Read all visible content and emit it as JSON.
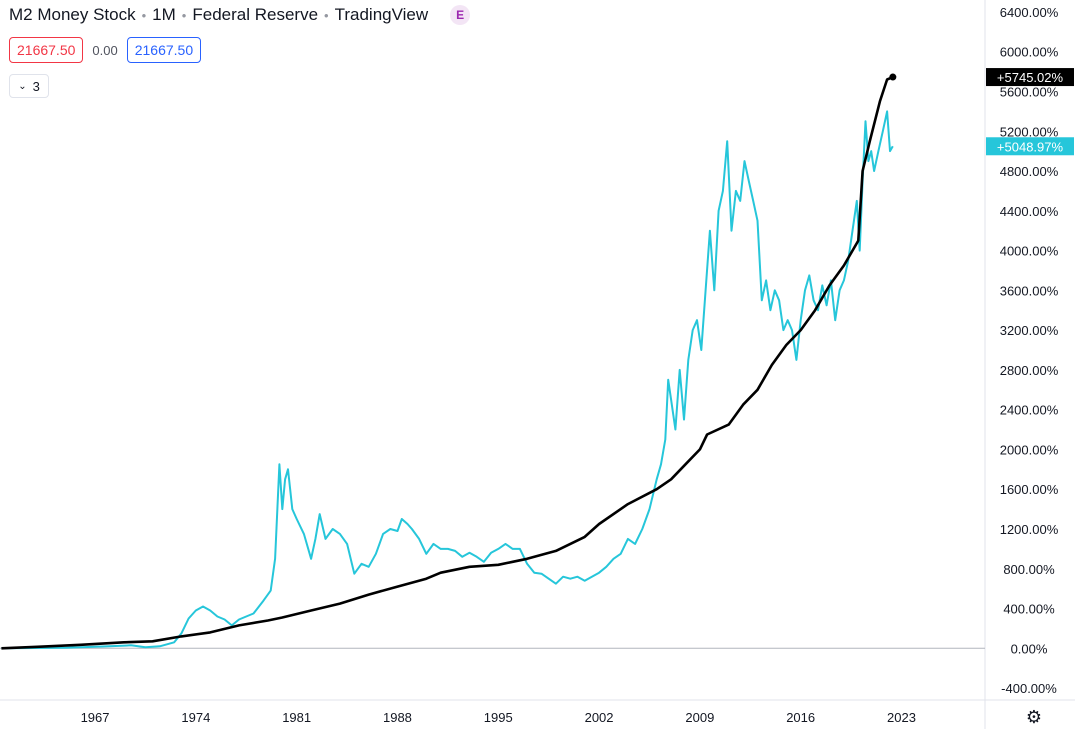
{
  "header": {
    "symbol": "M2 Money Stock",
    "interval": "1M",
    "source": "Federal Reserve",
    "platform": "TradingView",
    "badge": "E"
  },
  "values_row": {
    "left_value": "21667.50",
    "change": "0.00",
    "right_value": "21667.50"
  },
  "collapse": {
    "count": "3"
  },
  "icons": {
    "settings": "gear-icon",
    "collapse": "chevron-down-icon"
  },
  "colors": {
    "cyan_series": "#26c6da",
    "black_series": "#000000",
    "grid_zero": "#b2b5be"
  },
  "chart_data": {
    "type": "line",
    "y_axis": {
      "unit": "%",
      "range": [
        -520,
        6520
      ],
      "tick_labels": [
        "6400.00%",
        "6000.00%",
        "5600.00%",
        "5200.00%",
        "4800.00%",
        "4400.00%",
        "4000.00%",
        "3600.00%",
        "3200.00%",
        "2800.00%",
        "2400.00%",
        "2000.00%",
        "1600.00%",
        "1200.00%",
        "800.00%",
        "400.00%",
        "0.00%",
        "-400.00%"
      ],
      "tick_values": [
        6400,
        6000,
        5600,
        5200,
        4800,
        4400,
        4000,
        3600,
        3200,
        2800,
        2400,
        2000,
        1600,
        1200,
        800,
        400,
        0,
        -400
      ]
    },
    "x_axis": {
      "range": [
        1960.4,
        2028.8
      ],
      "tick_labels": [
        "1967",
        "1974",
        "1981",
        "1988",
        "1995",
        "2002",
        "2009",
        "2016",
        "2023"
      ],
      "tick_values": [
        1967,
        1974,
        1981,
        1988,
        1995,
        2002,
        2009,
        2016,
        2023
      ]
    },
    "last_value_labels": {
      "black": "+5745.02%",
      "cyan": "+5048.97%"
    },
    "series": [
      {
        "color": "#000000",
        "points": [
          [
            1960.5,
            0
          ],
          [
            1963,
            15
          ],
          [
            1966,
            35
          ],
          [
            1969,
            60
          ],
          [
            1971,
            70
          ],
          [
            1973,
            120
          ],
          [
            1975,
            160
          ],
          [
            1977,
            230
          ],
          [
            1979,
            280
          ],
          [
            1980,
            310
          ],
          [
            1982,
            380
          ],
          [
            1984,
            450
          ],
          [
            1986,
            540
          ],
          [
            1988,
            620
          ],
          [
            1990,
            700
          ],
          [
            1991,
            760
          ],
          [
            1993,
            820
          ],
          [
            1995,
            840
          ],
          [
            1996,
            870
          ],
          [
            1997,
            900
          ],
          [
            1999,
            980
          ],
          [
            2001,
            1120
          ],
          [
            2002,
            1250
          ],
          [
            2004,
            1450
          ],
          [
            2006,
            1600
          ],
          [
            2007,
            1700
          ],
          [
            2008,
            1850
          ],
          [
            2009,
            2000
          ],
          [
            2009.5,
            2150
          ],
          [
            2011,
            2250
          ],
          [
            2012,
            2450
          ],
          [
            2013,
            2600
          ],
          [
            2014,
            2850
          ],
          [
            2015,
            3050
          ],
          [
            2016,
            3200
          ],
          [
            2017,
            3400
          ],
          [
            2018,
            3650
          ],
          [
            2019,
            3850
          ],
          [
            2020,
            4100
          ],
          [
            2020.3,
            4800
          ],
          [
            2020.8,
            5100
          ],
          [
            2021.5,
            5500
          ],
          [
            2022,
            5720
          ],
          [
            2022.4,
            5745
          ]
        ]
      },
      {
        "color": "#26c6da",
        "points": [
          [
            1960.5,
            0
          ],
          [
            1965,
            5
          ],
          [
            1968,
            20
          ],
          [
            1969.5,
            30
          ],
          [
            1970.5,
            10
          ],
          [
            1971.5,
            20
          ],
          [
            1972.5,
            60
          ],
          [
            1973,
            150
          ],
          [
            1973.5,
            300
          ],
          [
            1974,
            380
          ],
          [
            1974.5,
            420
          ],
          [
            1975,
            380
          ],
          [
            1975.5,
            320
          ],
          [
            1976,
            290
          ],
          [
            1976.5,
            230
          ],
          [
            1977,
            290
          ],
          [
            1977.5,
            320
          ],
          [
            1978,
            350
          ],
          [
            1978.7,
            480
          ],
          [
            1979.2,
            580
          ],
          [
            1979.5,
            900
          ],
          [
            1979.8,
            1850
          ],
          [
            1980,
            1400
          ],
          [
            1980.2,
            1700
          ],
          [
            1980.4,
            1800
          ],
          [
            1980.7,
            1400
          ],
          [
            1981,
            1300
          ],
          [
            1981.5,
            1150
          ],
          [
            1982,
            900
          ],
          [
            1982.3,
            1100
          ],
          [
            1982.6,
            1350
          ],
          [
            1983,
            1100
          ],
          [
            1983.5,
            1200
          ],
          [
            1984,
            1150
          ],
          [
            1984.5,
            1050
          ],
          [
            1985,
            750
          ],
          [
            1985.5,
            850
          ],
          [
            1986,
            820
          ],
          [
            1986.5,
            950
          ],
          [
            1987,
            1150
          ],
          [
            1987.5,
            1200
          ],
          [
            1988,
            1180
          ],
          [
            1988.3,
            1300
          ],
          [
            1988.7,
            1250
          ],
          [
            1989,
            1200
          ],
          [
            1989.5,
            1100
          ],
          [
            1990,
            950
          ],
          [
            1990.5,
            1050
          ],
          [
            1991,
            1000
          ],
          [
            1991.5,
            1000
          ],
          [
            1992,
            980
          ],
          [
            1992.5,
            920
          ],
          [
            1993,
            960
          ],
          [
            1993.5,
            920
          ],
          [
            1994,
            870
          ],
          [
            1994.5,
            960
          ],
          [
            1995,
            1000
          ],
          [
            1995.5,
            1050
          ],
          [
            1996,
            1000
          ],
          [
            1996.5,
            1000
          ],
          [
            1997,
            850
          ],
          [
            1997.5,
            760
          ],
          [
            1998,
            750
          ],
          [
            1998.5,
            700
          ],
          [
            1999,
            650
          ],
          [
            1999.5,
            720
          ],
          [
            2000,
            700
          ],
          [
            2000.5,
            720
          ],
          [
            2001,
            680
          ],
          [
            2001.5,
            720
          ],
          [
            2002,
            760
          ],
          [
            2002.5,
            820
          ],
          [
            2003,
            900
          ],
          [
            2003.5,
            950
          ],
          [
            2004,
            1100
          ],
          [
            2004.5,
            1050
          ],
          [
            2005,
            1200
          ],
          [
            2005.5,
            1400
          ],
          [
            2006,
            1700
          ],
          [
            2006.3,
            1850
          ],
          [
            2006.6,
            2100
          ],
          [
            2006.8,
            2700
          ],
          [
            2007,
            2500
          ],
          [
            2007.3,
            2200
          ],
          [
            2007.6,
            2800
          ],
          [
            2007.9,
            2300
          ],
          [
            2008.2,
            2900
          ],
          [
            2008.5,
            3200
          ],
          [
            2008.8,
            3300
          ],
          [
            2009.1,
            3000
          ],
          [
            2009.4,
            3600
          ],
          [
            2009.7,
            4200
          ],
          [
            2010,
            3600
          ],
          [
            2010.3,
            4400
          ],
          [
            2010.6,
            4600
          ],
          [
            2010.9,
            5100
          ],
          [
            2011.2,
            4200
          ],
          [
            2011.5,
            4600
          ],
          [
            2011.8,
            4500
          ],
          [
            2012.1,
            4900
          ],
          [
            2012.4,
            4700
          ],
          [
            2012.7,
            4500
          ],
          [
            2013,
            4300
          ],
          [
            2013.3,
            3500
          ],
          [
            2013.6,
            3700
          ],
          [
            2013.9,
            3400
          ],
          [
            2014.2,
            3600
          ],
          [
            2014.5,
            3500
          ],
          [
            2014.8,
            3200
          ],
          [
            2015.1,
            3300
          ],
          [
            2015.4,
            3200
          ],
          [
            2015.7,
            2900
          ],
          [
            2016,
            3300
          ],
          [
            2016.3,
            3600
          ],
          [
            2016.6,
            3750
          ],
          [
            2016.9,
            3500
          ],
          [
            2017.2,
            3400
          ],
          [
            2017.5,
            3650
          ],
          [
            2017.8,
            3450
          ],
          [
            2018.1,
            3700
          ],
          [
            2018.4,
            3300
          ],
          [
            2018.7,
            3600
          ],
          [
            2019,
            3700
          ],
          [
            2019.3,
            3900
          ],
          [
            2019.6,
            4200
          ],
          [
            2019.9,
            4500
          ],
          [
            2020.1,
            4000
          ],
          [
            2020.3,
            4700
          ],
          [
            2020.5,
            5300
          ],
          [
            2020.7,
            4900
          ],
          [
            2020.9,
            5000
          ],
          [
            2021.1,
            4800
          ],
          [
            2021.4,
            5000
          ],
          [
            2021.7,
            5200
          ],
          [
            2022,
            5400
          ],
          [
            2022.2,
            5000
          ],
          [
            2022.4,
            5050
          ]
        ]
      }
    ]
  }
}
